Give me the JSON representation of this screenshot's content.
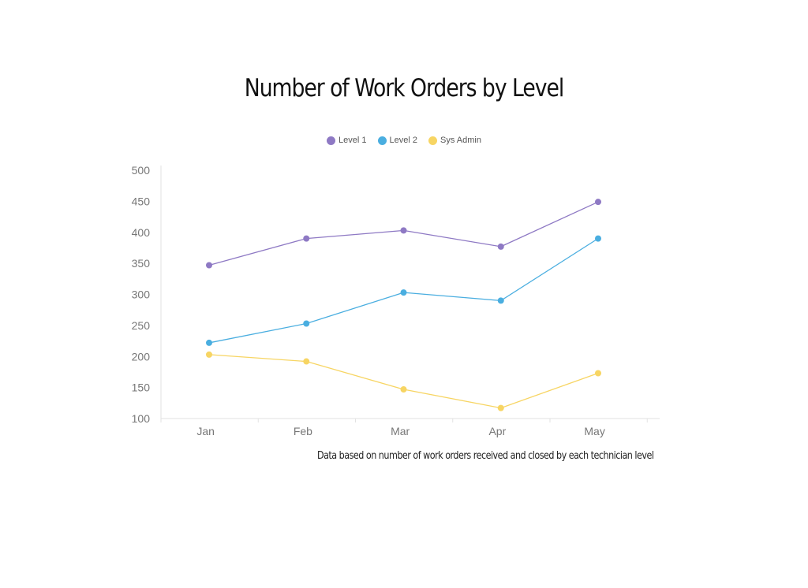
{
  "chart_data": {
    "type": "line",
    "title": "Number of Work Orders by Level",
    "xlabel": "",
    "ylabel": "",
    "categories": [
      "Jan",
      "Feb",
      "Mar",
      "Apr",
      "May"
    ],
    "ylim": [
      100,
      500
    ],
    "yticks": [
      100,
      150,
      200,
      250,
      300,
      350,
      400,
      450,
      500
    ],
    "grid": false,
    "legend_position": "top-center",
    "series": [
      {
        "name": "Level 1",
        "color": "#8e79c4",
        "values": [
          347,
          390,
          403,
          377,
          449
        ]
      },
      {
        "name": "Level 2",
        "color": "#4aaee0",
        "values": [
          222,
          253,
          303,
          290,
          390
        ]
      },
      {
        "name": "Sys Admin",
        "color": "#f7d563",
        "values": [
          203,
          192,
          147,
          117,
          173
        ]
      }
    ],
    "footnote": "Data based on number of work orders received and closed by each technician level"
  }
}
